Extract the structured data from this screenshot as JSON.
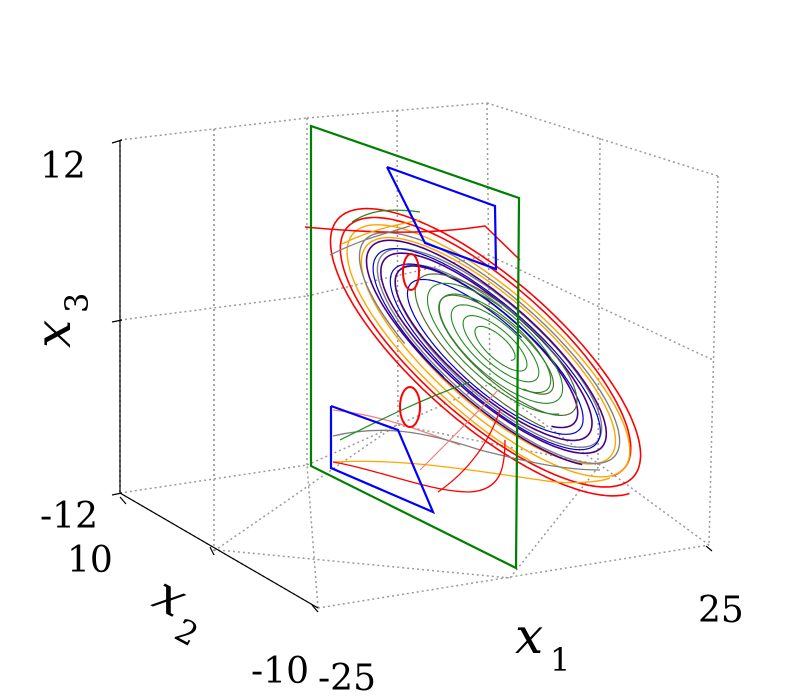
{
  "chart_data": {
    "type": "line",
    "projection": "3d",
    "title": "",
    "axes": {
      "x1": {
        "label": "x",
        "subscript": "1",
        "range": [
          -25,
          25
        ],
        "tick_labels": [
          "-25",
          "25"
        ]
      },
      "x2": {
        "label": "x",
        "subscript": "2",
        "range": [
          -10,
          10
        ],
        "tick_labels": [
          "10",
          "-10"
        ]
      },
      "x3": {
        "label": "x",
        "subscript": "3",
        "range": [
          -12,
          12
        ],
        "tick_labels": [
          "12",
          "-12"
        ]
      }
    },
    "grid": true,
    "legend": "none",
    "colors": {
      "section_plane": "#008000",
      "section_markers": "#0000ff",
      "trajectory_red": "#ff0000",
      "trajectory_light_red": "#f08080",
      "trajectory_orange": "#ffa500",
      "trajectory_gray": "#808080",
      "trajectory_purple": "#4b0082",
      "trajectory_green": "#228b22",
      "trajectory_olive": "#556b2f"
    }
  }
}
